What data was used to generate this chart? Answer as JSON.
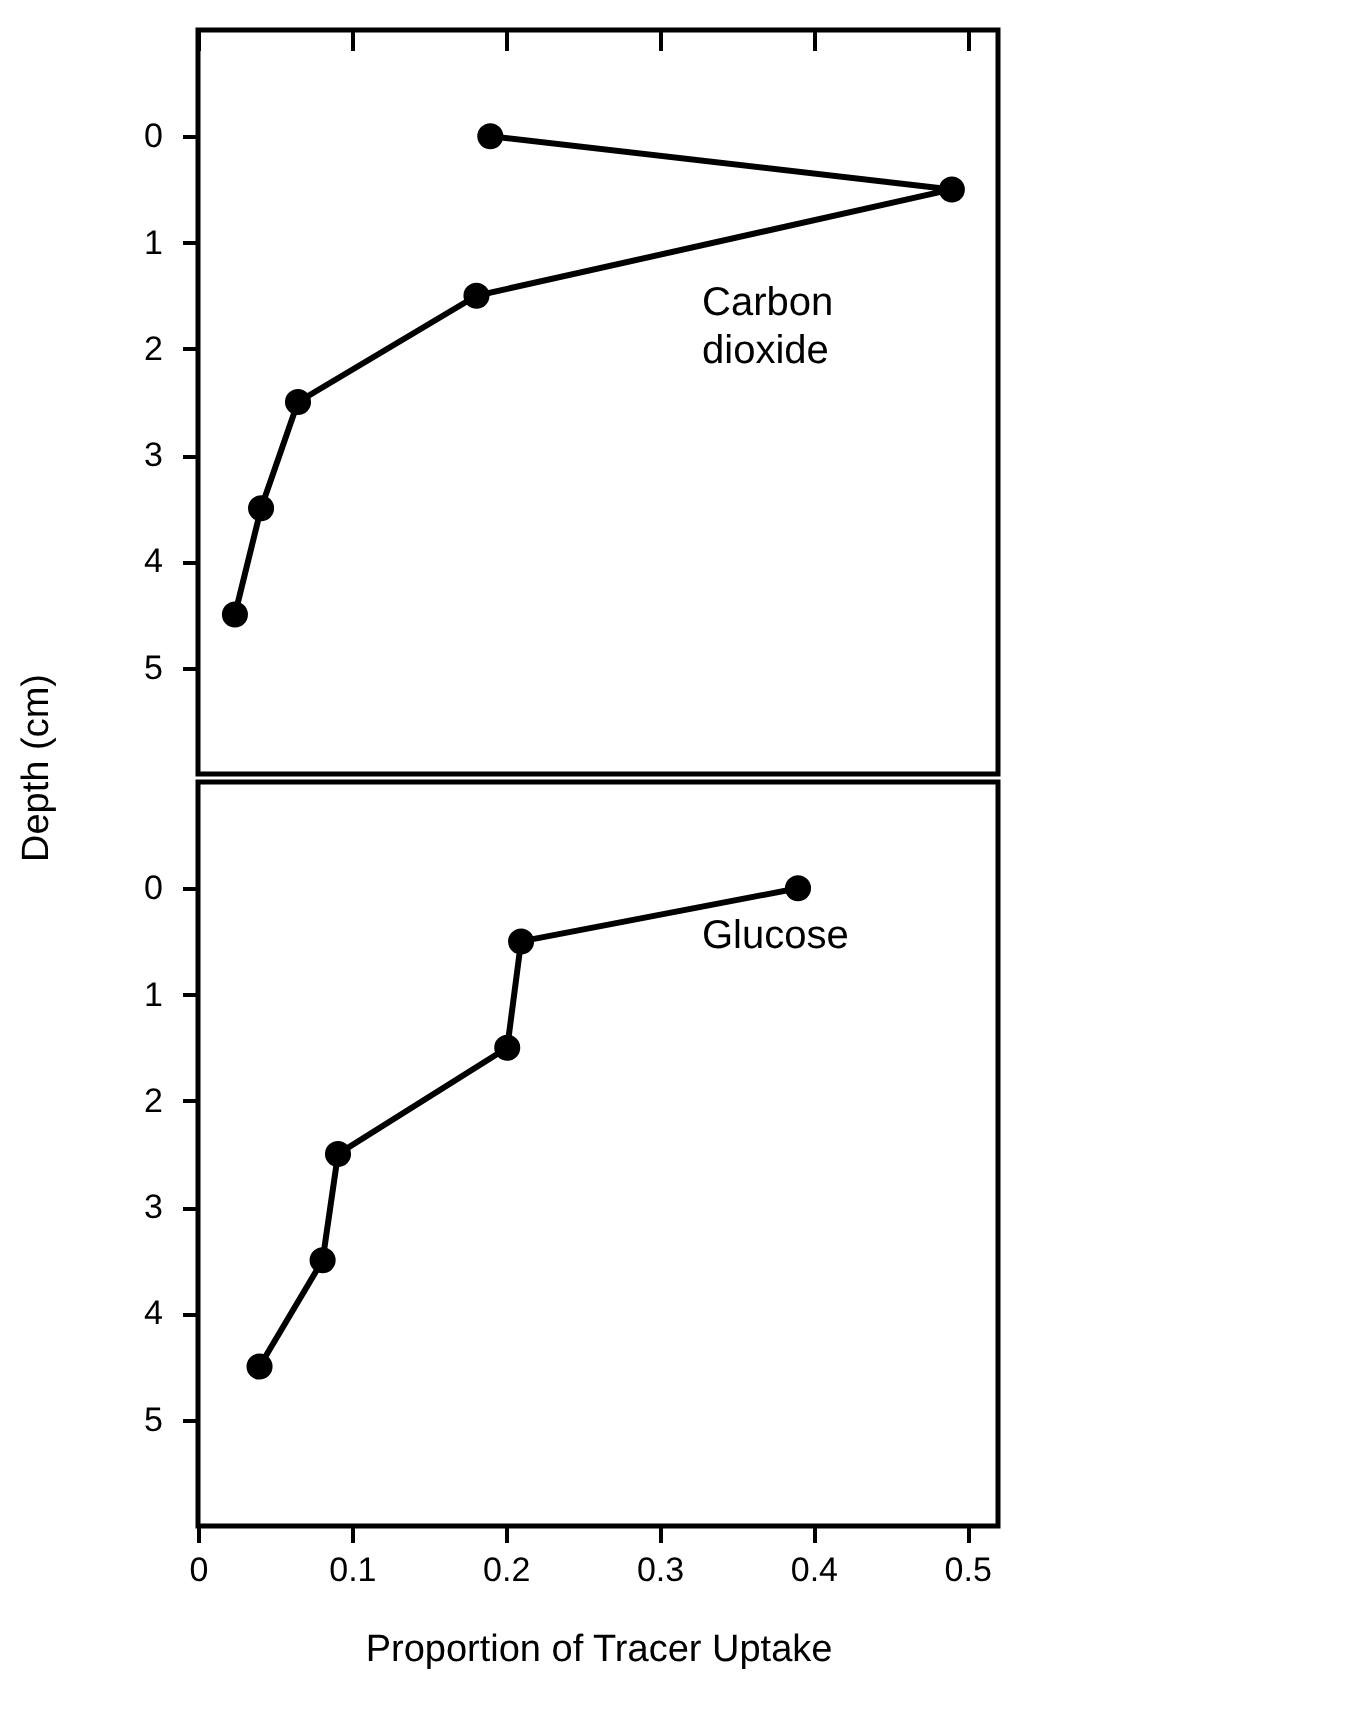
{
  "chart_data": [
    {
      "type": "line",
      "annotations": [
        "Carbon dioxide"
      ],
      "ylabel": "Depth (cm)",
      "x": [
        0.19,
        0.49,
        0.181,
        0.065,
        0.041,
        0.024
      ],
      "values": [
        0,
        0.5,
        1.5,
        2.5,
        3.5,
        4.5
      ],
      "color": "#000000",
      "marker": "circle",
      "line_style": "solid",
      "xlim": [
        0,
        0.52
      ],
      "xticks": [
        0,
        0.1,
        0.2,
        0.3,
        0.4,
        0.5
      ],
      "ylim": [
        6,
        -1
      ],
      "yticks": [
        0,
        1,
        2,
        3,
        4,
        5
      ],
      "tick_labels": "y"
    },
    {
      "type": "line",
      "annotations": [
        "Glucose"
      ],
      "xlabel": "Proportion of Tracer Uptake",
      "x": [
        0.39,
        0.21,
        0.201,
        0.091,
        0.081,
        0.04
      ],
      "values": [
        0,
        0.5,
        1.5,
        2.5,
        3.5,
        4.5
      ],
      "color": "#000000",
      "marker": "circle",
      "line_style": "solid",
      "xlim": [
        0,
        0.52
      ],
      "xticks": [
        0,
        0.1,
        0.2,
        0.3,
        0.4,
        0.5
      ],
      "ylim": [
        6,
        -1
      ],
      "yticks": [
        0,
        1,
        2,
        3,
        4,
        5
      ]
    }
  ]
}
